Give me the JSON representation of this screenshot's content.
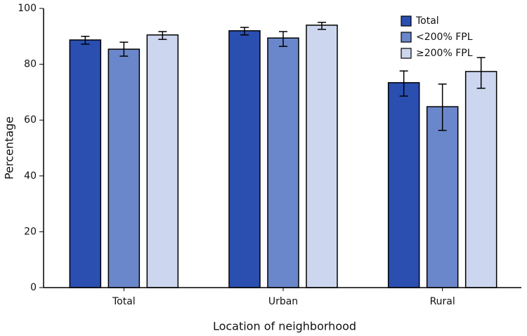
{
  "chart_data": {
    "type": "bar",
    "x_label": "Location of neighborhood",
    "y_label": "Percentage",
    "categories": [
      "Total",
      "Urban",
      "Rural"
    ],
    "series": [
      {
        "name": "Total",
        "color": "#2a4fb0",
        "values": [
          88.7,
          92.0,
          73.4
        ],
        "ci_lower": [
          87.2,
          90.5,
          68.6
        ],
        "ci_upper": [
          90.0,
          93.2,
          77.6
        ]
      },
      {
        "name": "<200% FPL",
        "color": "#6b87cb",
        "values": [
          85.4,
          89.4,
          64.8
        ],
        "ci_lower": [
          82.9,
          86.4,
          56.3
        ],
        "ci_upper": [
          87.9,
          91.7,
          72.9
        ]
      },
      {
        "name": "≥200% FPL",
        "color": "#cdd6ef",
        "values": [
          90.5,
          94.0,
          77.4
        ],
        "ci_lower": [
          88.9,
          92.5,
          71.4
        ],
        "ci_upper": [
          91.7,
          95.0,
          82.4
        ]
      }
    ],
    "ylim": [
      0,
      100
    ],
    "yticks": [
      0,
      20,
      40,
      60,
      80,
      100
    ],
    "legend": "top-right"
  }
}
